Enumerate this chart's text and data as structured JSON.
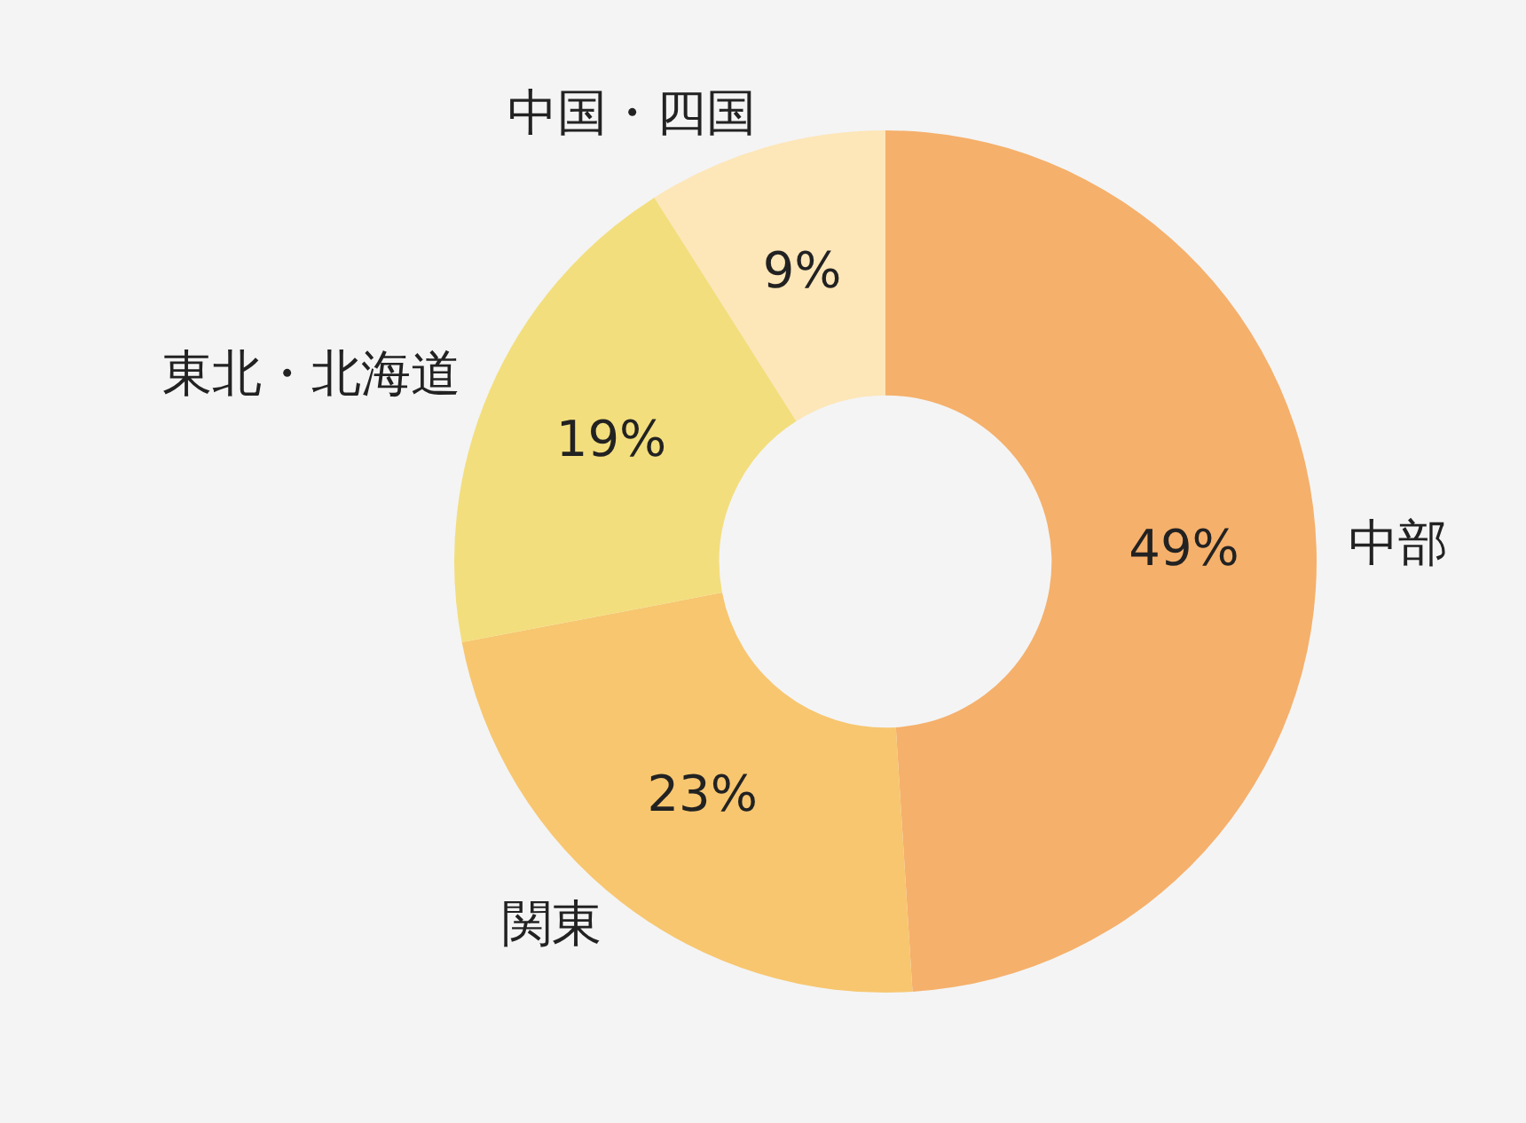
{
  "chart_data": {
    "type": "donut",
    "categories": [
      "中部",
      "関東",
      "東北・北海道",
      "中国・四国"
    ],
    "values": [
      49,
      23,
      19,
      9
    ],
    "colors": [
      "#f5b06b",
      "#f7c66f",
      "#f3de7d",
      "#fde6b8"
    ],
    "value_labels": [
      "49%",
      "23%",
      "19%",
      "9%"
    ],
    "legend": false
  }
}
